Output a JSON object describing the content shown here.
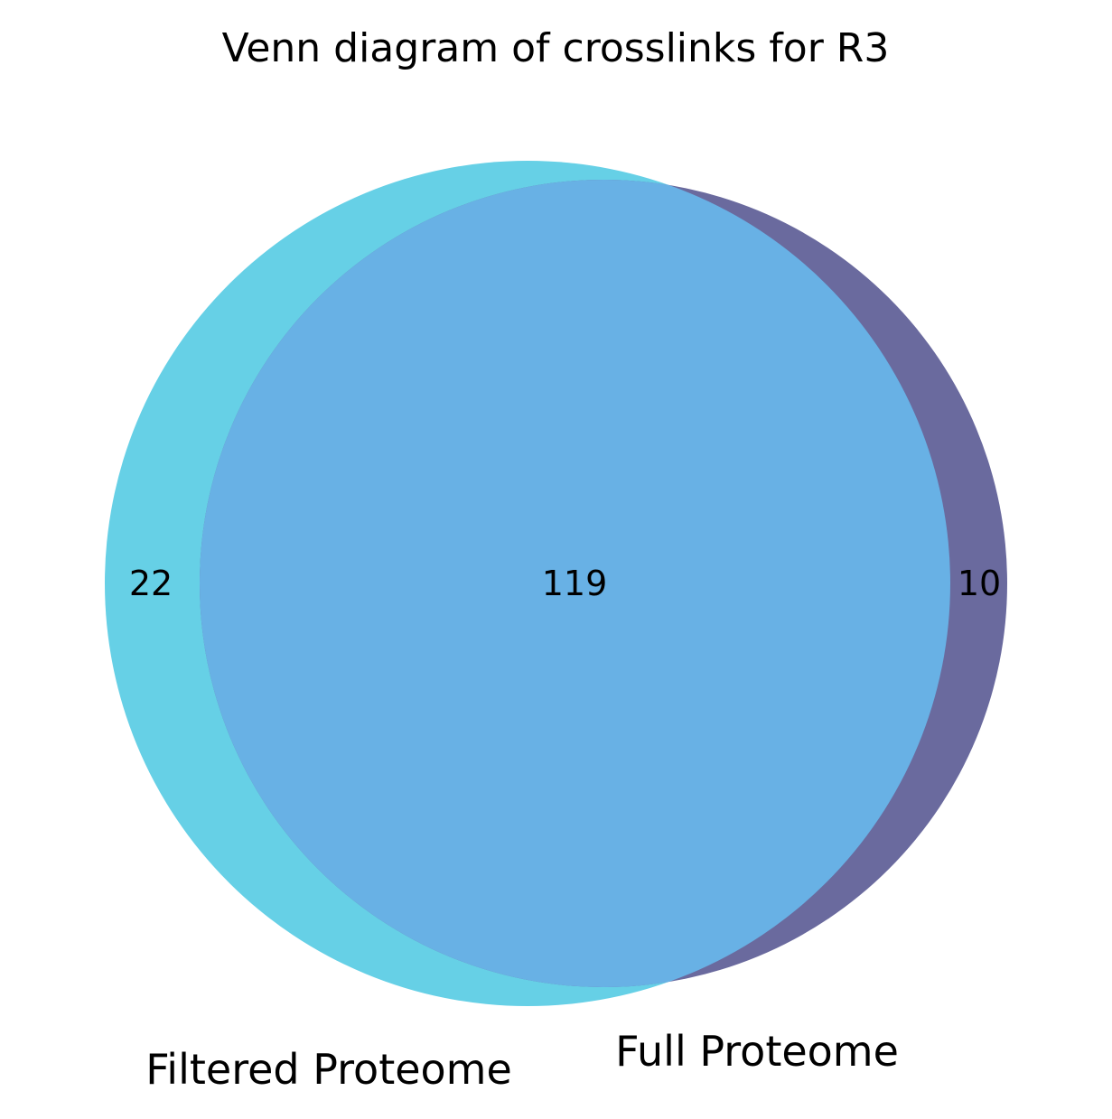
{
  "chart_data": {
    "type": "venn",
    "title": "Venn diagram of crosslinks for R3",
    "sets": [
      {
        "name": "Filtered Proteome",
        "only_count": "22",
        "color": "#66d0e6"
      },
      {
        "name": "Full Proteome",
        "only_count": "10",
        "color": "#6a6a9e"
      }
    ],
    "intersection": {
      "count": "119",
      "color": "#68b1e5"
    }
  }
}
